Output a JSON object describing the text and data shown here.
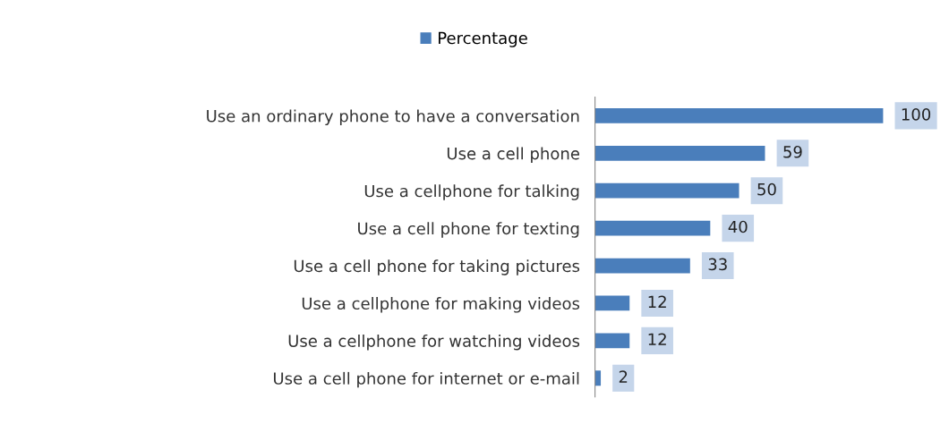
{
  "chart_data": {
    "type": "bar",
    "orientation": "horizontal",
    "categories": [
      "Use an ordinary phone to have a conversation",
      "Use a cell phone",
      "Use a cellphone for talking",
      "Use a cell phone for texting",
      "Use a cell phone for taking pictures",
      "Use a cellphone for making videos",
      "Use a cellphone for watching videos",
      "Use a cell phone for internet or e-mail"
    ],
    "series": [
      {
        "name": "Percentage",
        "color": "#4a7ebb",
        "values": [
          100,
          59,
          50,
          40,
          33,
          12,
          12,
          2
        ]
      }
    ],
    "data_labels": true,
    "legend": "top",
    "grid": false
  }
}
